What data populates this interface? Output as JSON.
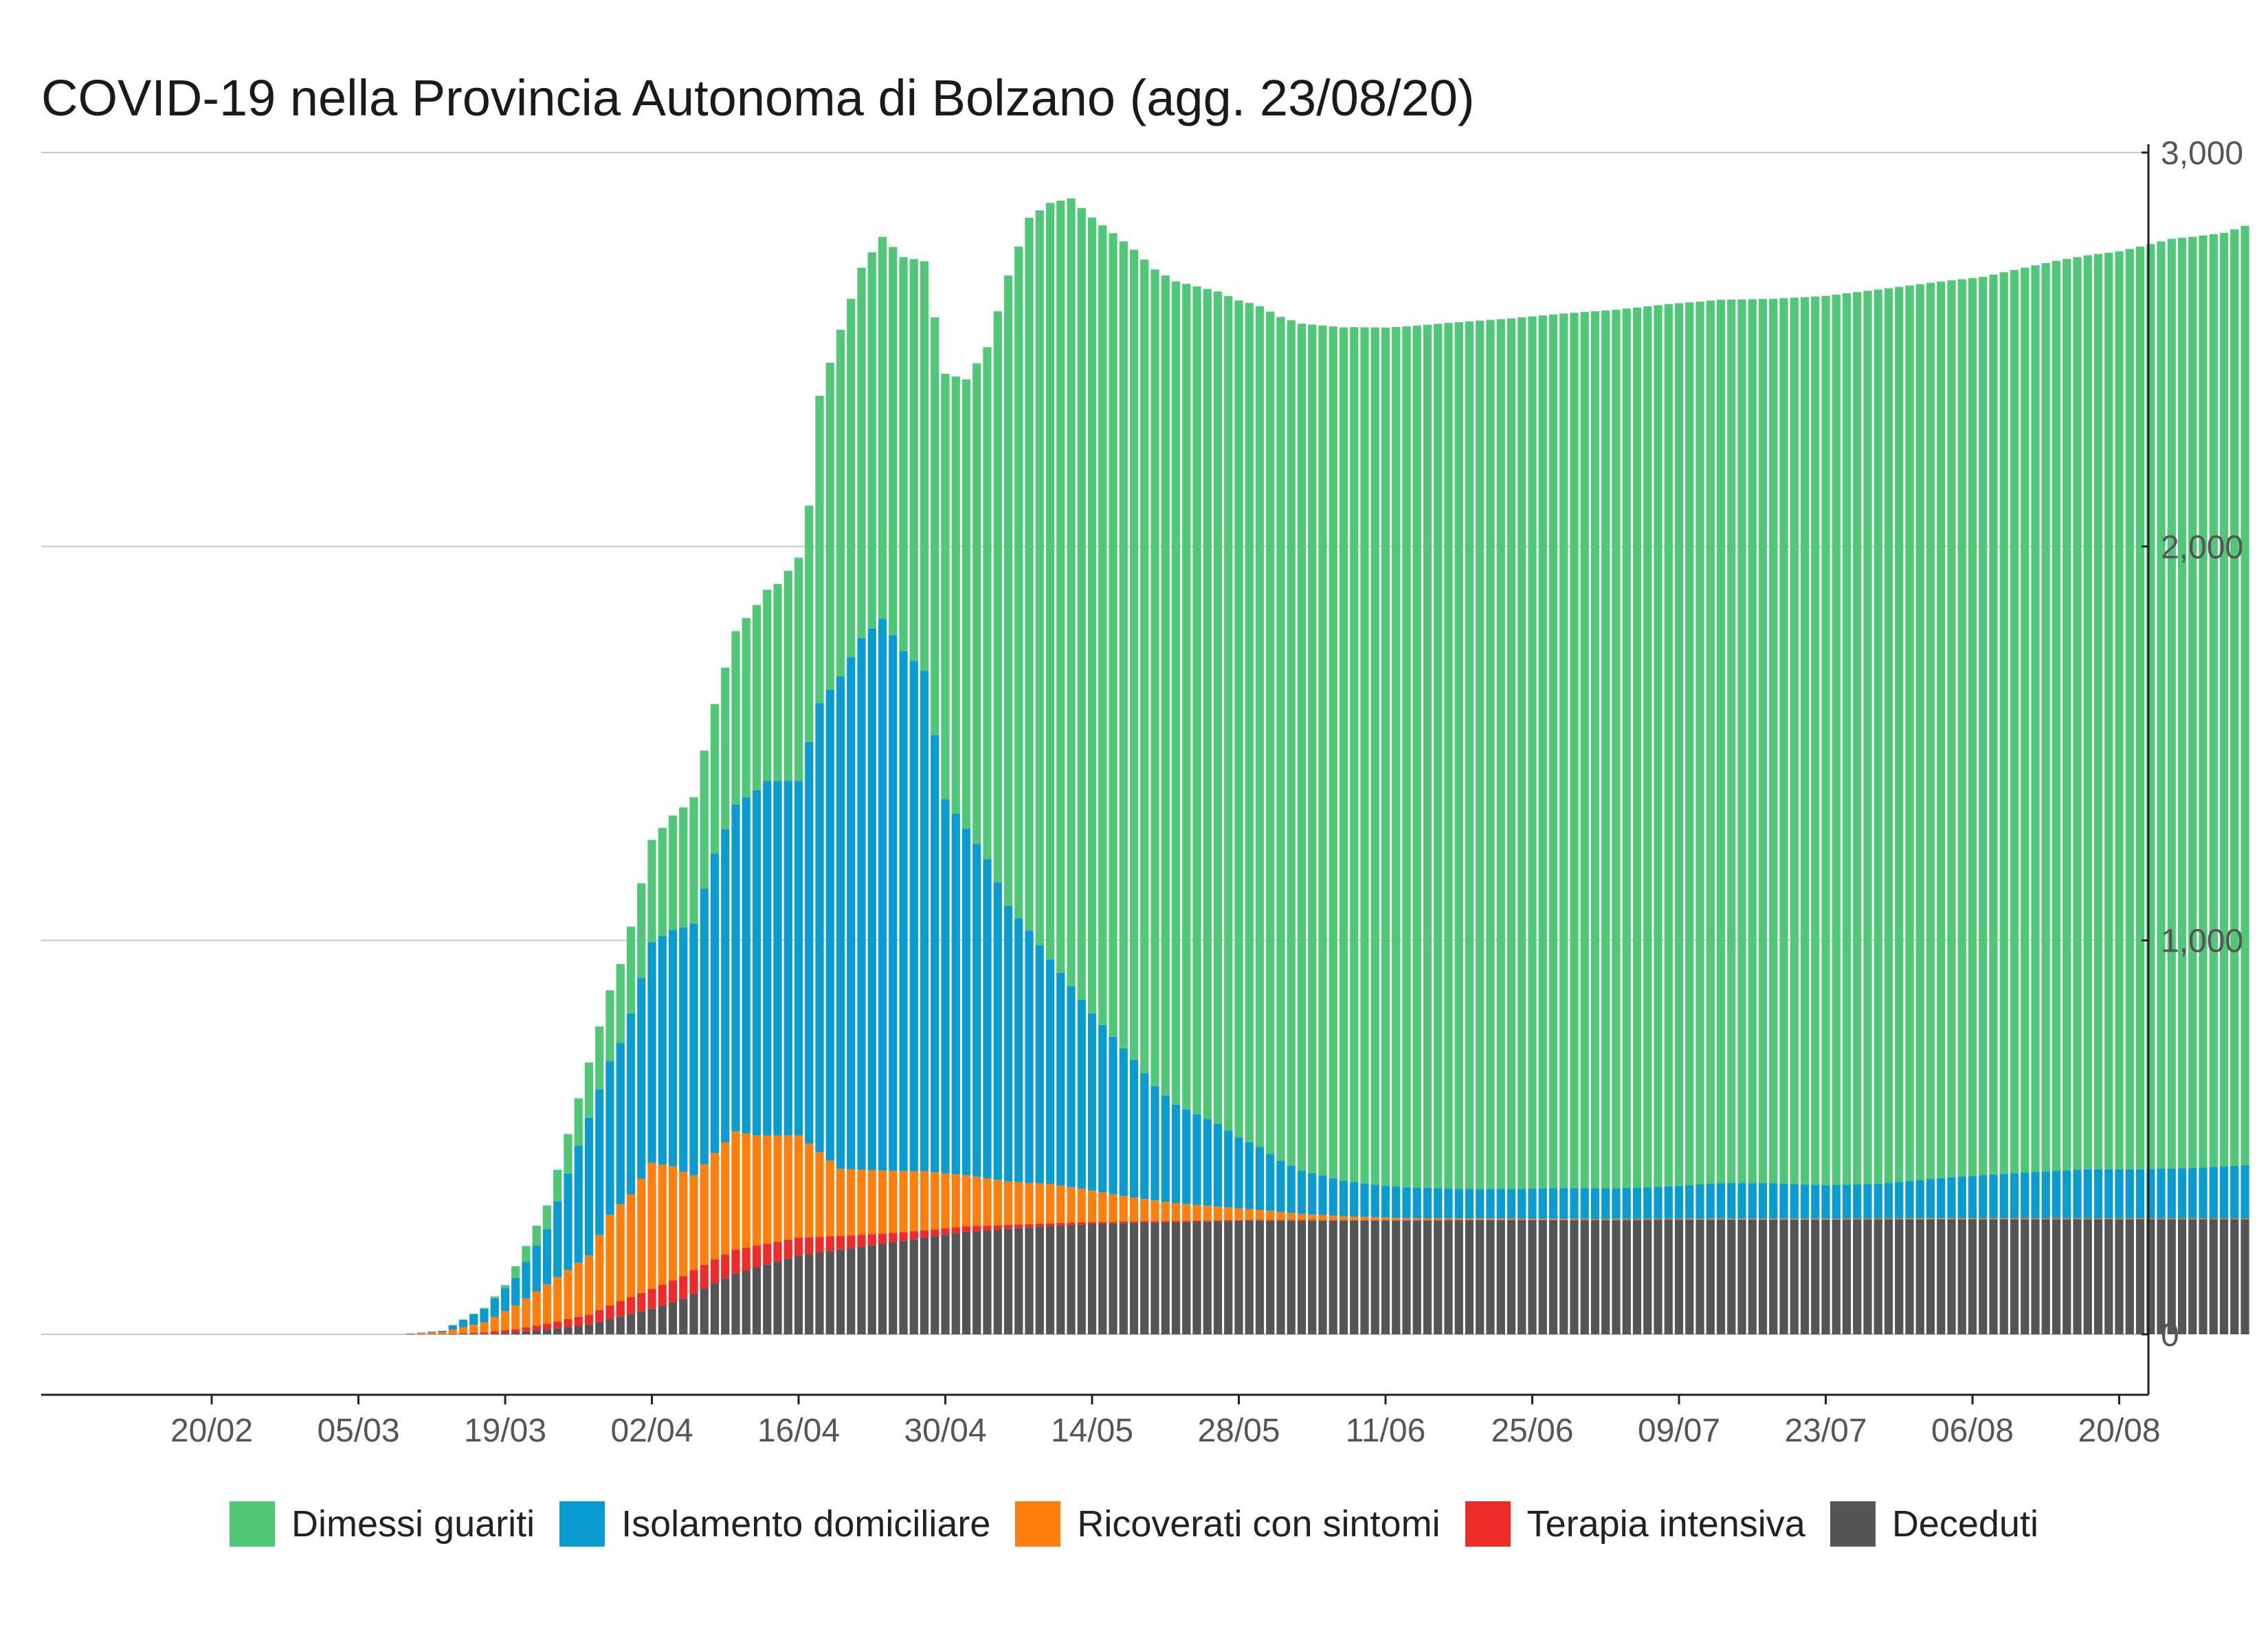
{
  "chart_data": {
    "type": "bar",
    "stacked": true,
    "title": "COVID-19 nella Provincia Autonoma di Bolzano (agg. 23/08/20)",
    "xlabel": "",
    "ylabel": "",
    "y_axis_side": "right",
    "ylim": [
      -150,
      3000
    ],
    "yticks": [
      0,
      1000,
      2000,
      3000
    ],
    "ytick_labels": [
      "0",
      "1,000",
      "2,000",
      "3,000"
    ],
    "x_range_days": [
      -3,
      193
    ],
    "x_start_date": "2020-02-24",
    "xticks": [
      "20/02",
      "05/03",
      "19/03",
      "02/04",
      "16/04",
      "30/04",
      "14/05",
      "28/05",
      "11/06",
      "25/06",
      "09/07",
      "23/07",
      "06/08",
      "20/08"
    ],
    "grid": true,
    "legend_position": "bottom",
    "series": [
      {
        "name": "Dimessi guariti",
        "color": "#50C878",
        "keypoints": [
          [
            0,
            0
          ],
          [
            14,
            0
          ],
          [
            18,
            0
          ],
          [
            22,
            2
          ],
          [
            24,
            8
          ],
          [
            25,
            30
          ],
          [
            28,
            60
          ],
          [
            32,
            140
          ],
          [
            35,
            200
          ],
          [
            38,
            260
          ],
          [
            42,
            320
          ],
          [
            46,
            440
          ],
          [
            50,
            500
          ],
          [
            53,
            600
          ],
          [
            54,
            780
          ],
          [
            56,
            880
          ],
          [
            58,
            940
          ],
          [
            60,
            970
          ],
          [
            62,
            1000
          ],
          [
            64,
            1040
          ],
          [
            66,
            1080
          ],
          [
            68,
            1140
          ],
          [
            70,
            1300
          ],
          [
            72,
            1600
          ],
          [
            74,
            1810
          ],
          [
            76,
            1920
          ],
          [
            78,
            2000
          ],
          [
            82,
            2040
          ],
          [
            88,
            2090
          ],
          [
            95,
            2130
          ],
          [
            105,
            2170
          ],
          [
            115,
            2200
          ],
          [
            125,
            2220
          ],
          [
            130,
            2230
          ],
          [
            135,
            2240
          ],
          [
            145,
            2245
          ],
          [
            155,
            2270
          ],
          [
            165,
            2280
          ],
          [
            172,
            2310
          ],
          [
            175,
            2320
          ],
          [
            178,
            2330
          ],
          [
            183,
            2360
          ],
          [
            188,
            2370
          ],
          [
            192,
            2400
          ],
          [
            193,
            2410
          ]
        ]
      },
      {
        "name": "Isolamento domiciliare",
        "color": "#0A9BD0",
        "keypoints": [
          [
            0,
            0
          ],
          [
            14,
            0
          ],
          [
            18,
            3
          ],
          [
            22,
            35
          ],
          [
            25,
            70
          ],
          [
            28,
            140
          ],
          [
            32,
            350
          ],
          [
            35,
            410
          ],
          [
            38,
            560
          ],
          [
            42,
            640
          ],
          [
            44,
            760
          ],
          [
            46,
            830
          ],
          [
            49,
            900
          ],
          [
            52,
            900
          ],
          [
            54,
            1140
          ],
          [
            56,
            1250
          ],
          [
            58,
            1350
          ],
          [
            60,
            1400
          ],
          [
            62,
            1320
          ],
          [
            64,
            1270
          ],
          [
            66,
            950
          ],
          [
            68,
            880
          ],
          [
            70,
            810
          ],
          [
            72,
            700
          ],
          [
            74,
            640
          ],
          [
            76,
            570
          ],
          [
            78,
            510
          ],
          [
            80,
            450
          ],
          [
            82,
            400
          ],
          [
            84,
            350
          ],
          [
            86,
            290
          ],
          [
            88,
            250
          ],
          [
            90,
            230
          ],
          [
            92,
            210
          ],
          [
            94,
            180
          ],
          [
            96,
            160
          ],
          [
            98,
            130
          ],
          [
            100,
            110
          ],
          [
            102,
            100
          ],
          [
            104,
            90
          ],
          [
            108,
            80
          ],
          [
            115,
            75
          ],
          [
            120,
            75
          ],
          [
            125,
            78
          ],
          [
            130,
            78
          ],
          [
            135,
            82
          ],
          [
            140,
            90
          ],
          [
            145,
            90
          ],
          [
            150,
            85
          ],
          [
            155,
            88
          ],
          [
            160,
            100
          ],
          [
            165,
            110
          ],
          [
            170,
            118
          ],
          [
            175,
            125
          ],
          [
            180,
            125
          ],
          [
            185,
            128
          ],
          [
            190,
            135
          ],
          [
            193,
            150
          ]
        ]
      },
      {
        "name": "Ricoverati con sintomi",
        "color": "#FF7F0E",
        "keypoints": [
          [
            0,
            0
          ],
          [
            14,
            0
          ],
          [
            18,
            5
          ],
          [
            22,
            25
          ],
          [
            25,
            60
          ],
          [
            28,
            100
          ],
          [
            32,
            150
          ],
          [
            34,
            230
          ],
          [
            36,
            260
          ],
          [
            38,
            320
          ],
          [
            40,
            290
          ],
          [
            42,
            240
          ],
          [
            44,
            270
          ],
          [
            46,
            300
          ],
          [
            48,
            280
          ],
          [
            52,
            260
          ],
          [
            56,
            170
          ],
          [
            60,
            160
          ],
          [
            64,
            150
          ],
          [
            68,
            130
          ],
          [
            72,
            110
          ],
          [
            76,
            100
          ],
          [
            80,
            80
          ],
          [
            84,
            60
          ],
          [
            88,
            45
          ],
          [
            92,
            35
          ],
          [
            96,
            25
          ],
          [
            100,
            15
          ],
          [
            104,
            10
          ],
          [
            110,
            5
          ],
          [
            120,
            3
          ],
          [
            130,
            2
          ],
          [
            140,
            2
          ],
          [
            150,
            2
          ],
          [
            160,
            2
          ],
          [
            170,
            2
          ],
          [
            180,
            2
          ],
          [
            193,
            2
          ]
        ]
      },
      {
        "name": "Terapia intensiva",
        "color": "#EE2B2B",
        "keypoints": [
          [
            0,
            0
          ],
          [
            14,
            0
          ],
          [
            18,
            1
          ],
          [
            22,
            3
          ],
          [
            25,
            8
          ],
          [
            28,
            15
          ],
          [
            32,
            25
          ],
          [
            35,
            40
          ],
          [
            38,
            50
          ],
          [
            42,
            60
          ],
          [
            46,
            60
          ],
          [
            50,
            50
          ],
          [
            54,
            40
          ],
          [
            58,
            30
          ],
          [
            62,
            22
          ],
          [
            66,
            16
          ],
          [
            70,
            12
          ],
          [
            74,
            8
          ],
          [
            78,
            6
          ],
          [
            82,
            4
          ],
          [
            88,
            3
          ],
          [
            95,
            2
          ],
          [
            105,
            1
          ],
          [
            115,
            1
          ],
          [
            193,
            0
          ]
        ]
      },
      {
        "name": "Deceduti",
        "color": "#555555",
        "keypoints": [
          [
            0,
            0
          ],
          [
            14,
            0
          ],
          [
            18,
            0
          ],
          [
            22,
            2
          ],
          [
            25,
            5
          ],
          [
            28,
            12
          ],
          [
            32,
            25
          ],
          [
            35,
            45
          ],
          [
            38,
            65
          ],
          [
            41,
            90
          ],
          [
            44,
            130
          ],
          [
            46,
            155
          ],
          [
            48,
            170
          ],
          [
            52,
            200
          ],
          [
            56,
            215
          ],
          [
            60,
            230
          ],
          [
            64,
            245
          ],
          [
            68,
            260
          ],
          [
            72,
            268
          ],
          [
            76,
            275
          ],
          [
            80,
            280
          ],
          [
            84,
            283
          ],
          [
            88,
            285
          ],
          [
            92,
            287
          ],
          [
            96,
            289
          ],
          [
            100,
            289
          ],
          [
            110,
            289
          ],
          [
            120,
            290
          ],
          [
            130,
            290
          ],
          [
            140,
            291
          ],
          [
            150,
            291
          ],
          [
            160,
            292
          ],
          [
            170,
            292
          ],
          [
            180,
            292
          ],
          [
            193,
            292
          ]
        ]
      }
    ]
  }
}
